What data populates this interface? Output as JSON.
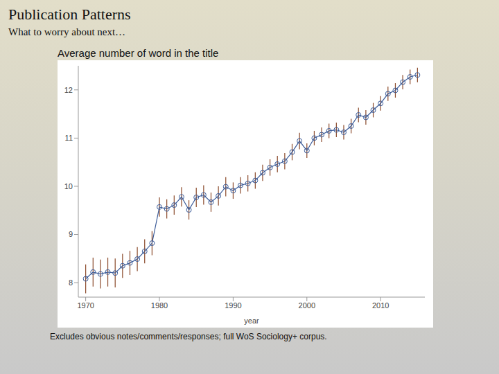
{
  "slide": {
    "title": "Publication Patterns",
    "subtitle": "What to worry about next…"
  },
  "chart_data": {
    "type": "line",
    "title": "Average number of word in the title",
    "x_label": "year",
    "note": "Excludes obvious notes/comments/responses; full WoS Sociology+ corpus.",
    "x": [
      1970,
      1971,
      1972,
      1973,
      1974,
      1975,
      1976,
      1977,
      1978,
      1979,
      1980,
      1981,
      1982,
      1983,
      1984,
      1985,
      1986,
      1987,
      1988,
      1989,
      1990,
      1991,
      1992,
      1993,
      1994,
      1995,
      1996,
      1997,
      1998,
      1999,
      2000,
      2001,
      2002,
      2003,
      2004,
      2005,
      2006,
      2007,
      2008,
      2009,
      2010,
      2011,
      2012,
      2013,
      2014,
      2015
    ],
    "values": [
      8.08,
      8.22,
      8.18,
      8.22,
      8.2,
      8.35,
      8.41,
      8.49,
      8.65,
      8.82,
      9.57,
      9.53,
      9.61,
      9.78,
      9.51,
      9.77,
      9.82,
      9.67,
      9.8,
      9.99,
      9.91,
      10.02,
      10.06,
      10.12,
      10.28,
      10.39,
      10.46,
      10.52,
      10.71,
      10.94,
      10.74,
      11.0,
      11.07,
      11.15,
      11.17,
      11.12,
      11.25,
      11.48,
      11.43,
      11.58,
      11.72,
      11.92,
      11.99,
      12.16,
      12.27,
      12.31
    ],
    "errors": [
      0.3,
      0.3,
      0.3,
      0.3,
      0.3,
      0.25,
      0.25,
      0.25,
      0.25,
      0.25,
      0.2,
      0.2,
      0.2,
      0.2,
      0.2,
      0.2,
      0.2,
      0.2,
      0.2,
      0.2,
      0.17,
      0.17,
      0.17,
      0.17,
      0.17,
      0.17,
      0.17,
      0.17,
      0.17,
      0.17,
      0.15,
      0.15,
      0.15,
      0.15,
      0.15,
      0.15,
      0.15,
      0.15,
      0.15,
      0.15,
      0.15,
      0.15,
      0.15,
      0.15,
      0.15,
      0.15
    ],
    "color": "#3b5b98",
    "marker": "circle",
    "xlim": [
      1969,
      2016
    ],
    "xticks": [
      1970,
      1980,
      1990,
      2000,
      2010
    ],
    "ylim": [
      7.7,
      12.5
    ],
    "yticks": [
      8,
      9,
      10,
      11,
      12
    ],
    "grid": false
  }
}
